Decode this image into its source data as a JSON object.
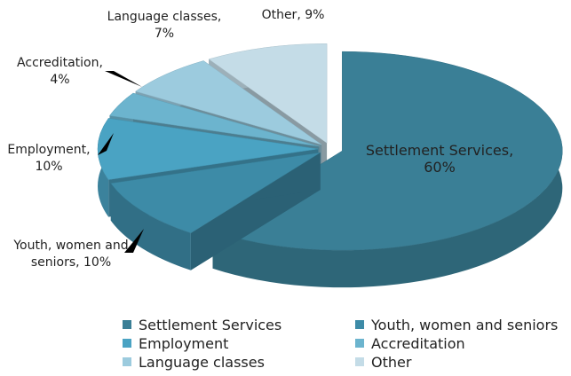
{
  "chart_data": {
    "type": "pie",
    "categories": [
      "Settlement Services",
      "Youth, women and seniors",
      "Employment",
      "Accreditation",
      "Language classes",
      "Other"
    ],
    "values": [
      60,
      10,
      10,
      4,
      7,
      9
    ],
    "value_labels": [
      "Settlement Services, 60%",
      "Youth, women and seniors, 10%",
      "Employment, 10%",
      "Accreditation, 4%",
      "Language classes, 7%",
      "Other, 9%"
    ],
    "colors": [
      "#3a7f96",
      "#3d8ba7",
      "#4aa3c3",
      "#6cb4ce",
      "#9ccbde",
      "#c4dce7"
    ],
    "legend": "bottom"
  }
}
